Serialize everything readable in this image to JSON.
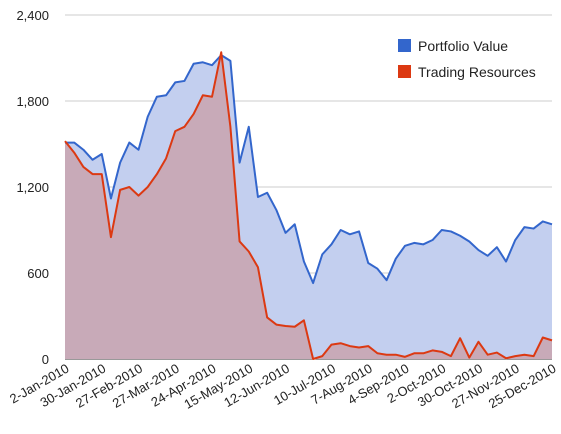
{
  "chart_data": {
    "type": "area",
    "title": "",
    "xlabel": "",
    "ylabel": "",
    "ylim": [
      0,
      2400
    ],
    "y_ticks": [
      "0",
      "600",
      "1,200",
      "1,800",
      "2,400"
    ],
    "x_tick_labels": [
      "2-Jan-2010",
      "30-Jan-2010",
      "27-Feb-2010",
      "27-Mar-2010",
      "24-Apr-2010",
      "15-May-2010",
      "12-Jun-2010",
      "10-Jul-2010",
      "7-Aug-2010",
      "4-Sep-2010",
      "2-Oct-2010",
      "30-Oct-2010",
      "27-Nov-2010",
      "25-Dec-2010"
    ],
    "grid": true,
    "legend_position": "top-right",
    "series": [
      {
        "name": "Portfolio Value",
        "color": "#3366cc",
        "fill": "#c3cfef",
        "values": [
          1510,
          1510,
          1460,
          1390,
          1430,
          1120,
          1370,
          1510,
          1460,
          1690,
          1830,
          1840,
          1930,
          1940,
          2060,
          2070,
          2050,
          2120,
          2080,
          1370,
          1620,
          1130,
          1160,
          1040,
          880,
          940,
          680,
          530,
          730,
          800,
          900,
          870,
          890,
          670,
          630,
          550,
          700,
          790,
          810,
          800,
          830,
          900,
          890,
          860,
          820,
          760,
          720,
          780,
          680,
          830,
          920,
          910,
          960,
          940
        ]
      },
      {
        "name": "Trading Resources",
        "color": "#dc3912",
        "fill": "#c9a3ae",
        "values": [
          1520,
          1440,
          1340,
          1290,
          1290,
          850,
          1180,
          1200,
          1140,
          1200,
          1290,
          1400,
          1590,
          1620,
          1710,
          1840,
          1830,
          2140,
          1620,
          820,
          750,
          640,
          290,
          240,
          230,
          225,
          270,
          0,
          20,
          100,
          110,
          90,
          80,
          90,
          40,
          30,
          30,
          15,
          40,
          40,
          60,
          50,
          20,
          145,
          10,
          120,
          30,
          45,
          5,
          20,
          30,
          20,
          150,
          130
        ]
      }
    ]
  }
}
